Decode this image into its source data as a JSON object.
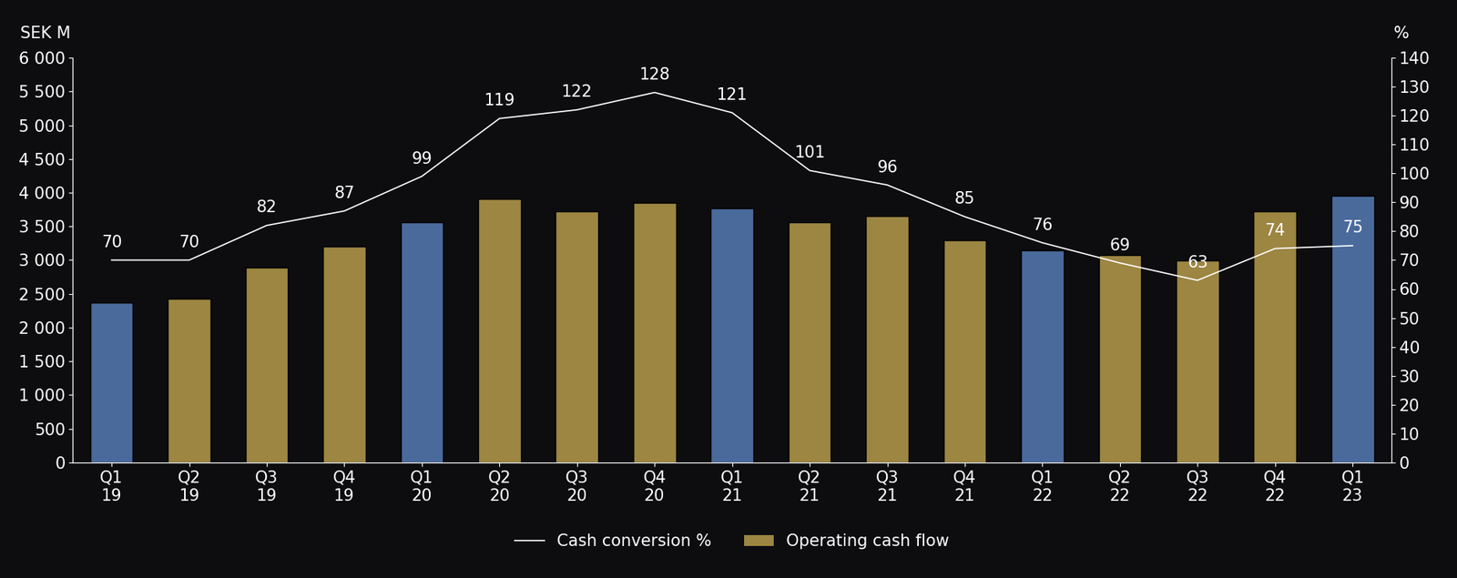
{
  "chart_data": {
    "type": "bar",
    "y_label": "SEK M",
    "y2_label": "%",
    "categories": [
      "Q1\n19",
      "Q2\n19",
      "Q3\n19",
      "Q4\n19",
      "Q1\n20",
      "Q2\n20",
      "Q3\n20",
      "Q4\n20",
      "Q1\n21",
      "Q2\n21",
      "Q3\n21",
      "Q4\n21",
      "Q1\n22",
      "Q2\n22",
      "Q3\n22",
      "Q4\n22",
      "Q1\n23"
    ],
    "series": [
      {
        "name": "Cash conversion %",
        "type": "line",
        "axis": "y2",
        "color": "#ffffff",
        "data_labels": true,
        "values": [
          70,
          70,
          82,
          87,
          99,
          119,
          122,
          128,
          121,
          101,
          96,
          85,
          76,
          69,
          63,
          74,
          75
        ]
      },
      {
        "name": "Operating cash flow",
        "type": "bar",
        "color": "#9c8642",
        "colors": [
          "#4a6a9c",
          "#9c8642",
          "#9c8642",
          "#9c8642",
          "#4a6a9c",
          "#9c8642",
          "#9c8642",
          "#9c8642",
          "#4a6a9c",
          "#9c8642",
          "#9c8642",
          "#9c8642",
          "#4a6a9c",
          "#9c8642",
          "#9c8642",
          "#9c8642",
          "#4a6a9c"
        ],
        "values": [
          2370,
          2430,
          2890,
          3200,
          3560,
          3910,
          3720,
          3850,
          3770,
          3560,
          3650,
          3300,
          3140,
          3070,
          2990,
          3720,
          3953
        ]
      }
    ],
    "ylim": [
      0,
      6000
    ],
    "yticks": [
      0,
      {
        "value": 500,
        "label": "500"
      },
      {
        "value": 1000,
        "label": "1 000"
      },
      {
        "value": 1500,
        "label": "1 500"
      },
      {
        "value": 2000,
        "label": "2 000"
      },
      {
        "value": 2500,
        "label": "2 500"
      },
      {
        "value": 3000,
        "label": "3 000"
      },
      {
        "value": 3500,
        "label": "3 500"
      },
      {
        "value": 4000,
        "label": "4 000"
      },
      {
        "value": 4500,
        "label": "4 500"
      },
      {
        "value": 5000,
        "label": "5 000"
      },
      {
        "value": 5500,
        "label": "5 500"
      },
      {
        "value": 6000,
        "label": "6 000"
      }
    ],
    "y2lim": [
      0,
      140
    ],
    "y2ticks": [
      0,
      10,
      20,
      30,
      40,
      50,
      60,
      70,
      80,
      90,
      100,
      110,
      120,
      130,
      140
    ],
    "legend": "upper center",
    "grid": false
  }
}
